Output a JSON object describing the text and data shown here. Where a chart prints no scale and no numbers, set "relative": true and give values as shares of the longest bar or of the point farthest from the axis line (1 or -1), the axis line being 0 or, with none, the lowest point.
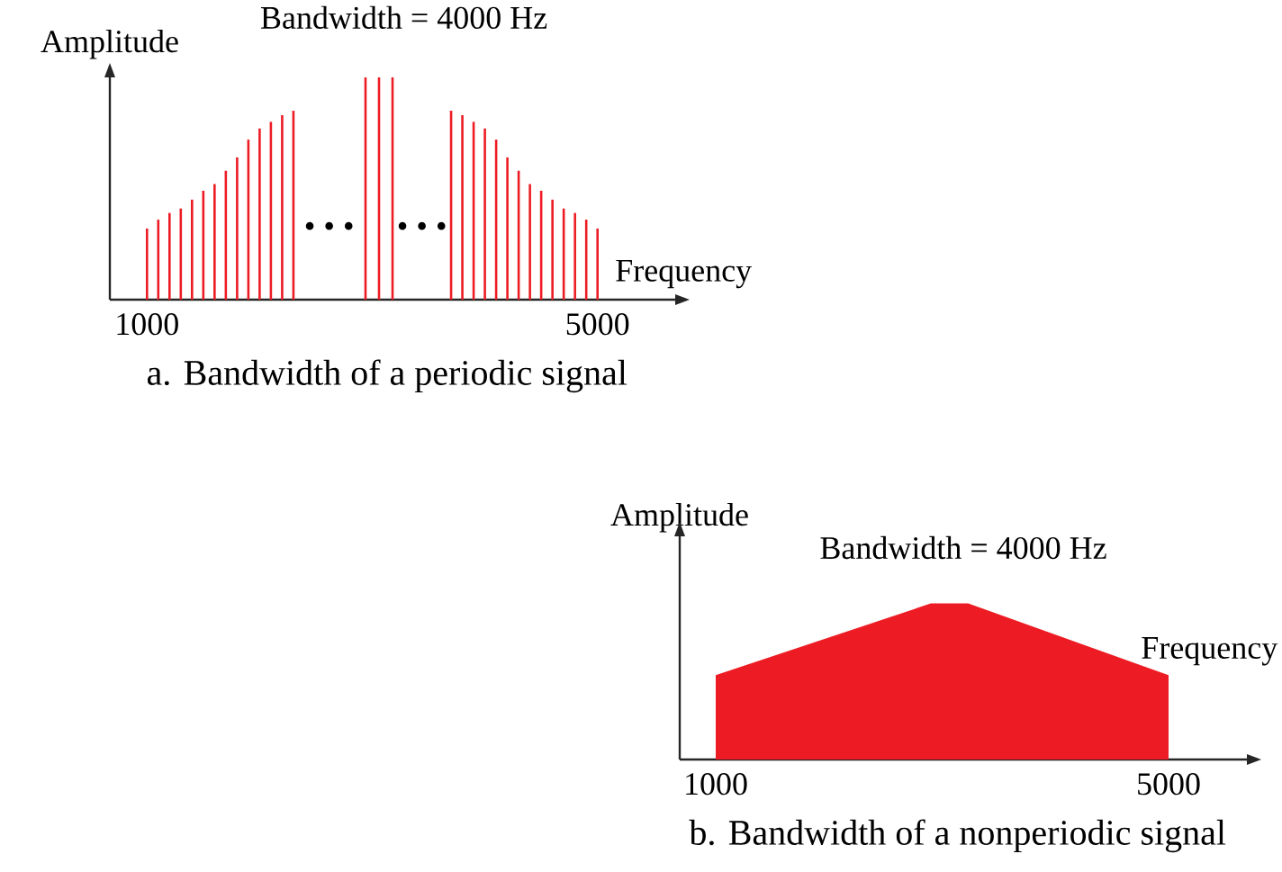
{
  "chart_data": [
    {
      "type": "bar",
      "title": "a. Bandwidth of a periodic signal",
      "xlabel": "Frequency",
      "ylabel": "Amplitude",
      "relative": true,
      "tick_labels": "x",
      "xlim": [
        670,
        5690
      ],
      "xticks": [
        1000,
        5000
      ],
      "x": [
        1000,
        1100,
        1200,
        1300,
        1400,
        1500,
        1600,
        1700,
        1800,
        1900,
        2000,
        2100,
        2200,
        2300,
        2940,
        3060,
        3180,
        3700,
        3800,
        3900,
        4000,
        4100,
        4200,
        4300,
        4400,
        4500,
        4600,
        4700,
        4800,
        4900,
        5000
      ],
      "values": [
        0.32,
        0.36,
        0.39,
        0.41,
        0.45,
        0.49,
        0.52,
        0.58,
        0.64,
        0.72,
        0.77,
        0.8,
        0.83,
        0.85,
        1,
        1,
        1,
        0.85,
        0.83,
        0.8,
        0.77,
        0.72,
        0.64,
        0.58,
        0.52,
        0.49,
        0.45,
        0.41,
        0.39,
        0.36,
        0.32
      ],
      "color": "#ed1c24",
      "annotations": [
        "Bandwidth =  4000 Hz",
        "• • •",
        "• • •"
      ]
    },
    {
      "type": "area",
      "title": "b. Bandwidth of a nonperiodic signal",
      "xlabel": "Frequency",
      "ylabel": "Amplitude",
      "relative": true,
      "tick_labels": "x",
      "xlim": [
        682,
        5692
      ],
      "xticks": [
        1000,
        5000
      ],
      "x": [
        1000,
        2900,
        3230,
        5000
      ],
      "values": [
        0.54,
        1,
        1,
        0.54
      ],
      "color": "#ed1c24",
      "annotations": [
        "Bandwidth =  4000 Hz"
      ]
    }
  ]
}
